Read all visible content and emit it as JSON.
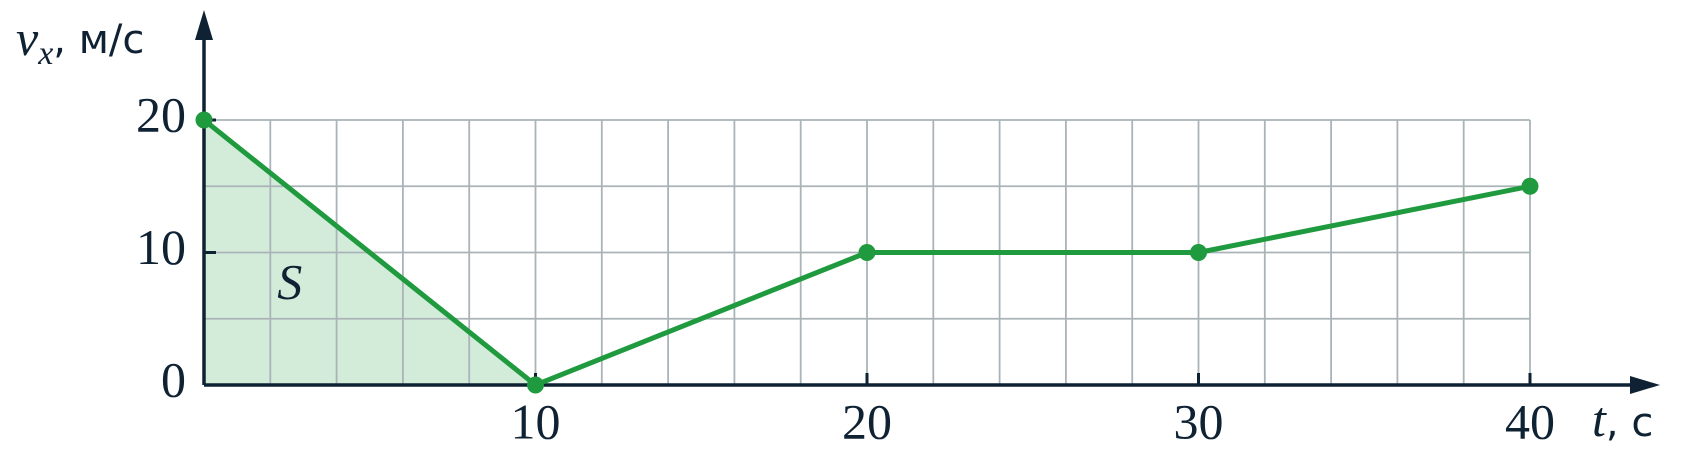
{
  "chart_data": {
    "type": "line",
    "ylabel_var": "v",
    "ylabel_sub": "x",
    "ylabel_unit": ", м/с",
    "xlabel_var": "t",
    "xlabel_unit": ", с",
    "x": [
      0,
      10,
      20,
      30,
      40
    ],
    "series": [
      {
        "color": "#1f9a3e",
        "values": [
          20,
          0,
          10,
          10,
          15
        ]
      }
    ],
    "xlim": [
      0,
      40
    ],
    "ylim": [
      0,
      20
    ],
    "xticks": [
      10,
      20,
      30,
      40
    ],
    "yticks": [
      0,
      10,
      20
    ],
    "x_gridlines": [
      2,
      4,
      6,
      8,
      10,
      12,
      14,
      16,
      18,
      20,
      22,
      24,
      26,
      28,
      30,
      32,
      34,
      36,
      38,
      40
    ],
    "y_gridlines": [
      5,
      10,
      15,
      20
    ],
    "shaded_area": {
      "label": "S",
      "x_range": [
        0,
        10
      ],
      "color": "#d3ecda"
    }
  }
}
